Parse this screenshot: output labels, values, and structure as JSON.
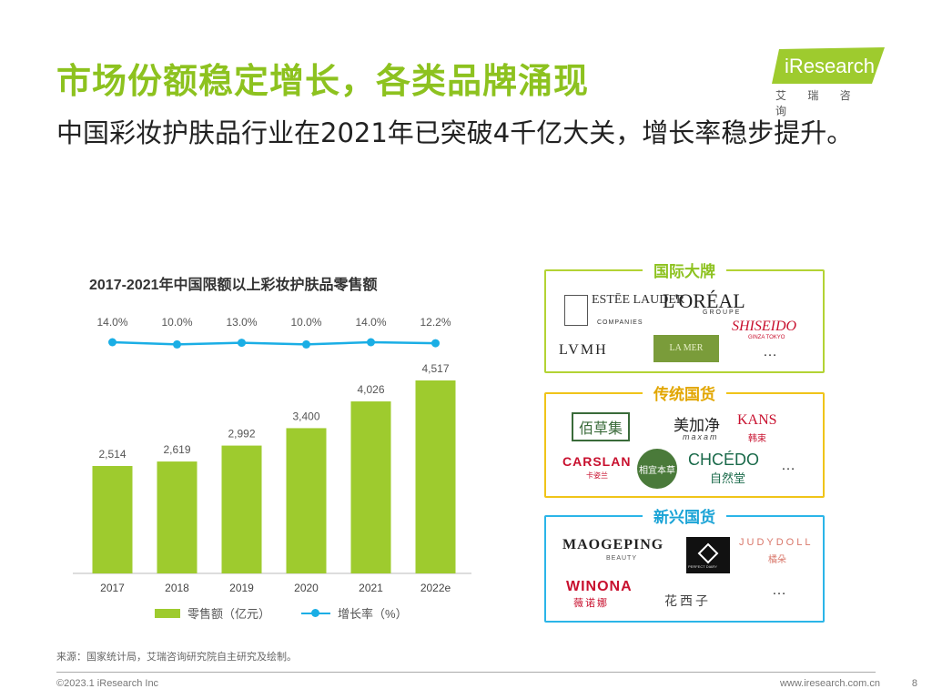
{
  "header": {
    "title": "市场份额稳定增长，各类品牌涌现",
    "subtitle": "中国彩妆护肤品行业在2021年已突破4千亿大关，增长率稳步提升。"
  },
  "logo": {
    "name": "iResearch",
    "sub": "艾 瑞 咨 询"
  },
  "chart_data": {
    "type": "bar",
    "title": "2017-2021年中国限额以上彩妆护肤品零售额",
    "categories": [
      "2017",
      "2018",
      "2019",
      "2020",
      "2021",
      "2022e"
    ],
    "series": [
      {
        "name": "零售额（亿元）",
        "type": "bar",
        "values": [
          2514,
          2619,
          2992,
          3400,
          4026,
          4517
        ],
        "labels": [
          "2,514",
          "2,619",
          "2,992",
          "3,400",
          "4,026",
          "4,517"
        ],
        "color": "#9ecb2e"
      },
      {
        "name": "增长率（%）",
        "type": "line",
        "values": [
          14.0,
          10.0,
          13.0,
          10.0,
          14.0,
          12.2
        ],
        "labels": [
          "14.0%",
          "10.0%",
          "13.0%",
          "10.0%",
          "14.0%",
          "12.2%"
        ],
        "color": "#1aaee5"
      }
    ],
    "legend": {
      "bar": "零售额（亿元）",
      "line": "增长率（%）",
      "position": "bottom"
    }
  },
  "brands": {
    "international": {
      "label": "国际大牌",
      "color": "#b3d334",
      "items": [
        "ESTĒE LAUDER",
        "COMPANIES",
        "L'ORÉAL",
        "GROUPE",
        "SHISEIDO",
        "GINZA TOKYO",
        "LVMH",
        "LA MER",
        "…"
      ]
    },
    "traditional": {
      "label": "传统国货",
      "color": "#f0c419",
      "items": [
        "佰草集",
        "美加净",
        "maxam",
        "KANS",
        "韩束",
        "CARSLAN",
        "卡姿兰",
        "相宜本草",
        "CHCÉDO",
        "自然堂",
        "…"
      ]
    },
    "emerging": {
      "label": "新兴国货",
      "color": "#2bb5e8",
      "items": [
        "MAOGEPING",
        "BEAUTY",
        "PERFECT DIARY",
        "JUDYDOLL",
        "橘朵",
        "WINONA",
        "薇诺娜",
        "花西子",
        "…"
      ]
    }
  },
  "source": "来源：国家统计局，艾瑞咨询研究院自主研究及绘制。",
  "footer": {
    "copyright": "©2023.1 iResearch Inc",
    "url": "www.iresearch.com.cn",
    "page": "8"
  }
}
